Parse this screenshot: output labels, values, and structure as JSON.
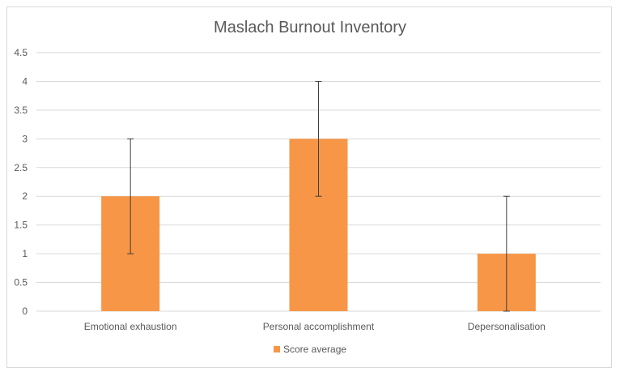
{
  "chart_data": {
    "type": "bar",
    "title": "Maslach Burnout Inventory",
    "categories": [
      "Emotional exhaustion",
      "Personal accomplishment",
      "Depersonalisation"
    ],
    "series": [
      {
        "name": "Score average",
        "values": [
          2,
          3,
          1
        ],
        "error_low": [
          1,
          2,
          0
        ],
        "error_high": [
          3,
          4,
          2
        ],
        "color": "#F79646"
      }
    ],
    "yticks": [
      "0",
      "0.5",
      "1",
      "1.5",
      "2",
      "2.5",
      "3",
      "3.5",
      "4",
      "4.5"
    ],
    "ylim": [
      0,
      4.5
    ],
    "grid": true,
    "legend": "bottom",
    "colors": {
      "bar": "#F79646",
      "grid": "#d9d9d9",
      "error_bar": "#404040",
      "text": "#595959"
    }
  }
}
